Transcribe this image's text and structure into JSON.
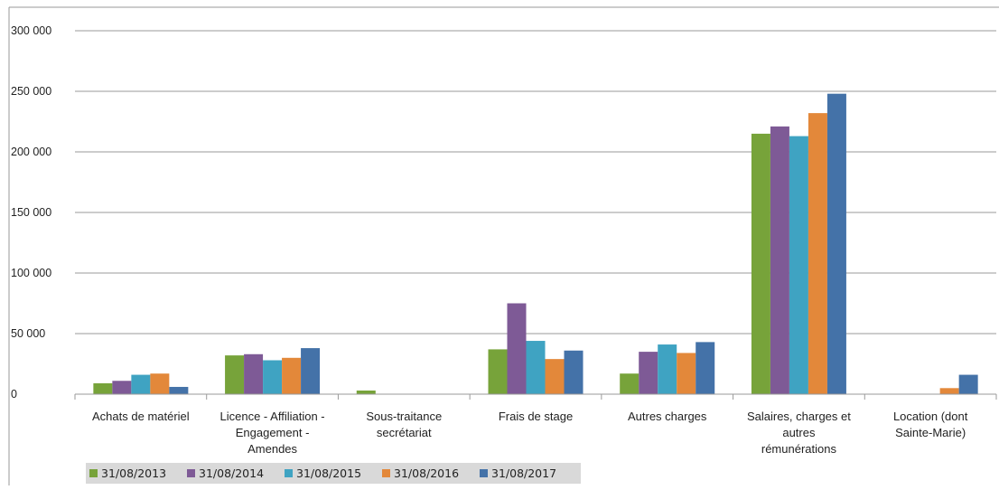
{
  "chart_data": {
    "type": "bar",
    "categories": [
      [
        "Achats de matériel"
      ],
      [
        "Licence - Affiliation -",
        "Engagement -",
        "Amendes"
      ],
      [
        "Sous-traitance",
        "secrétariat"
      ],
      [
        "Frais de stage"
      ],
      [
        "Autres charges"
      ],
      [
        "Salaires, charges et",
        "autres",
        "rémunérations"
      ],
      [
        "Location (dont",
        "Sainte-Marie)"
      ]
    ],
    "series": [
      {
        "name": "31/08/2013",
        "color": "#77a33a",
        "values": [
          9000,
          32000,
          3000,
          37000,
          17000,
          215000,
          0
        ]
      },
      {
        "name": "31/08/2014",
        "color": "#7e5a96",
        "values": [
          11000,
          33000,
          0,
          75000,
          35000,
          221000,
          0
        ]
      },
      {
        "name": "31/08/2015",
        "color": "#3fa3c2",
        "values": [
          16000,
          28000,
          0,
          44000,
          41000,
          213000,
          0
        ]
      },
      {
        "name": "31/08/2016",
        "color": "#e3883a",
        "values": [
          17000,
          30000,
          0,
          29000,
          34000,
          232000,
          5000
        ]
      },
      {
        "name": "31/08/2017",
        "color": "#4472a8",
        "values": [
          6000,
          38000,
          0,
          36000,
          43000,
          248000,
          16000
        ]
      }
    ],
    "yticks": [
      "0",
      "50 000",
      "100 000",
      "150 000",
      "200 000",
      "250 000",
      "300 000"
    ],
    "ylim": [
      0,
      300000
    ],
    "grid": true,
    "legend_position": "bottom-left"
  }
}
